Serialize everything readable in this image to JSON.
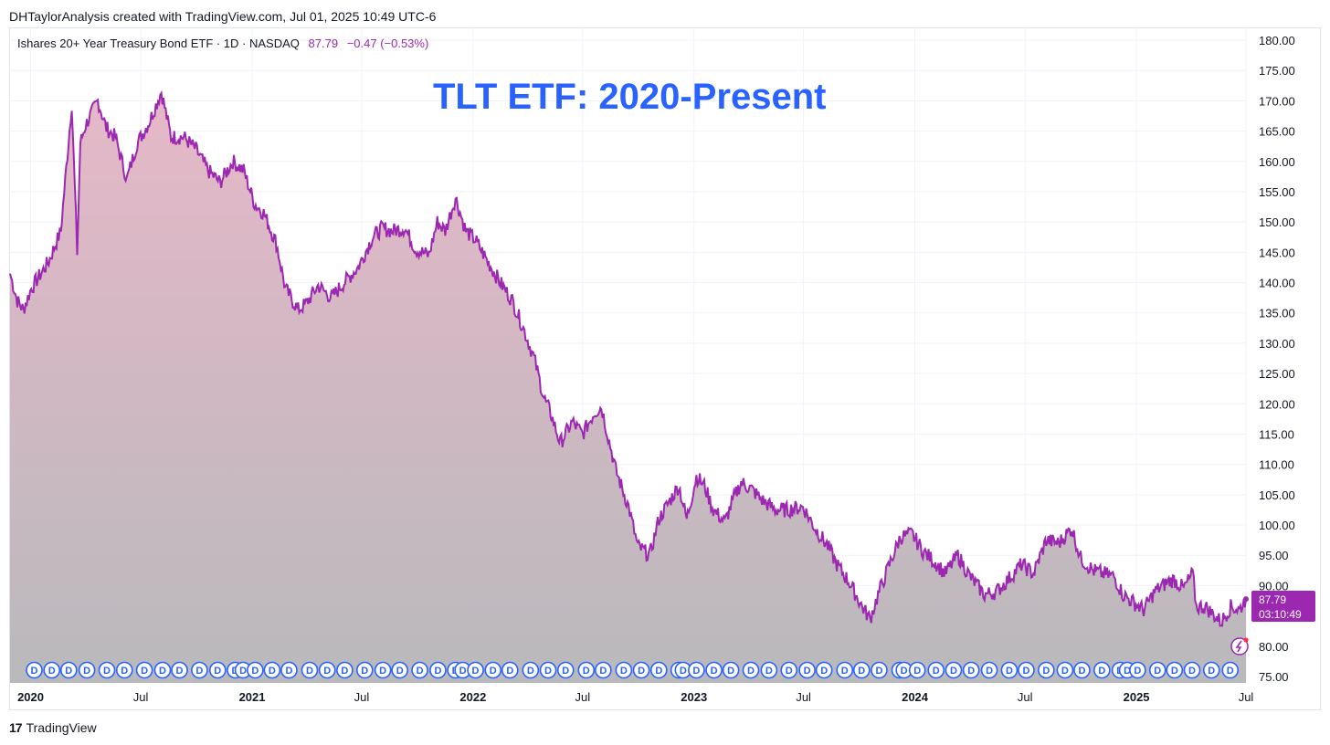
{
  "header": {
    "note": "DHTaylorAnalysis created with TradingView.com, Jul 01, 2025 10:49 UTC-6"
  },
  "symbol": {
    "description": "Ishares 20+ Year Treasury Bond ETF · 1D · NASDAQ",
    "last_price": "87.79",
    "change": "−0.47 (−0.53%)"
  },
  "price_box": {
    "price": "87.79",
    "countdown": "03:10:49"
  },
  "footer": {
    "brand": "TradingView",
    "logo_text": "17"
  },
  "dividend_marker_label": "D",
  "colors": {
    "line": "#9c27b0",
    "fill_top": "#e6b8c8",
    "fill_bottom": "#b9b9bc",
    "title": "#2962ff",
    "grid": "#f0f3fa",
    "badge": "#2962ff"
  },
  "chart_data": {
    "type": "area",
    "title": "TLT ETF: 2020-Present",
    "y_axis_side": "right",
    "ylim": [
      75,
      180
    ],
    "y_ticks": [
      "75.00",
      "80.00",
      "85.00",
      "90.00",
      "95.00",
      "100.00",
      "105.00",
      "110.00",
      "115.00",
      "120.00",
      "125.00",
      "130.00",
      "135.00",
      "140.00",
      "145.00",
      "150.00",
      "155.00",
      "160.00",
      "165.00",
      "170.00",
      "175.00",
      "180.00"
    ],
    "x_range": [
      "2019-11-28",
      "2025-07-01"
    ],
    "x_ticks": [
      {
        "label": "2020",
        "date": "2020-01-01",
        "bold": true
      },
      {
        "label": "Jul",
        "date": "2020-07-01",
        "bold": false
      },
      {
        "label": "2021",
        "date": "2021-01-01",
        "bold": true
      },
      {
        "label": "Jul",
        "date": "2021-07-01",
        "bold": false
      },
      {
        "label": "2022",
        "date": "2022-01-01",
        "bold": true
      },
      {
        "label": "Jul",
        "date": "2022-07-01",
        "bold": false
      },
      {
        "label": "2023",
        "date": "2023-01-01",
        "bold": true
      },
      {
        "label": "Jul",
        "date": "2023-07-01",
        "bold": false
      },
      {
        "label": "2024",
        "date": "2024-01-01",
        "bold": true
      },
      {
        "label": "Jul",
        "date": "2024-07-01",
        "bold": false
      },
      {
        "label": "2025",
        "date": "2025-01-01",
        "bold": true
      },
      {
        "label": "Jul",
        "date": "2025-07-01",
        "bold": false
      }
    ],
    "grid": true,
    "series": [
      {
        "x": [
          "2019-11-28",
          "2019-12-10",
          "2019-12-20",
          "2020-01-02",
          "2020-01-15",
          "2020-01-31",
          "2020-02-20",
          "2020-03-09",
          "2020-03-12",
          "2020-03-18",
          "2020-03-23",
          "2020-04-01",
          "2020-04-21",
          "2020-05-05",
          "2020-05-20",
          "2020-06-08",
          "2020-06-25",
          "2020-07-15",
          "2020-08-04",
          "2020-08-20",
          "2020-09-10",
          "2020-09-30",
          "2020-10-20",
          "2020-11-09",
          "2020-11-30",
          "2020-12-18",
          "2021-01-05",
          "2021-01-20",
          "2021-02-10",
          "2021-02-25",
          "2021-03-18",
          "2021-03-31",
          "2021-04-20",
          "2021-05-12",
          "2021-06-02",
          "2021-06-25",
          "2021-07-19",
          "2021-08-04",
          "2021-08-20",
          "2021-09-10",
          "2021-09-28",
          "2021-10-20",
          "2021-11-03",
          "2021-11-16",
          "2021-12-03",
          "2021-12-20",
          "2022-01-05",
          "2022-01-25",
          "2022-02-15",
          "2022-03-07",
          "2022-03-25",
          "2022-04-12",
          "2022-04-28",
          "2022-05-09",
          "2022-05-25",
          "2022-06-14",
          "2022-07-01",
          "2022-07-20",
          "2022-08-01",
          "2022-08-25",
          "2022-09-15",
          "2022-09-30",
          "2022-10-20",
          "2022-11-04",
          "2022-11-22",
          "2022-12-07",
          "2022-12-20",
          "2023-01-05",
          "2023-01-18",
          "2023-02-02",
          "2023-02-21",
          "2023-03-08",
          "2023-03-20",
          "2023-04-05",
          "2023-04-25",
          "2023-05-15",
          "2023-06-05",
          "2023-06-30",
          "2023-07-20",
          "2023-08-10",
          "2023-08-25",
          "2023-09-15",
          "2023-10-06",
          "2023-10-19",
          "2023-11-03",
          "2023-11-20",
          "2023-12-08",
          "2023-12-27",
          "2024-01-16",
          "2024-02-02",
          "2024-02-20",
          "2024-03-12",
          "2024-04-01",
          "2024-04-25",
          "2024-05-15",
          "2024-06-03",
          "2024-06-25",
          "2024-07-15",
          "2024-08-05",
          "2024-08-26",
          "2024-09-16",
          "2024-10-01",
          "2024-10-21",
          "2024-11-06",
          "2024-11-25",
          "2024-12-10",
          "2025-01-13",
          "2025-01-31",
          "2025-02-20",
          "2025-03-04",
          "2025-03-20",
          "2025-04-04",
          "2025-04-10",
          "2025-04-25",
          "2025-05-21",
          "2025-06-06",
          "2025-06-20",
          "2025-07-01"
        ],
        "values": [
          141.5,
          137.0,
          135.5,
          139.0,
          141.0,
          143.5,
          148.5,
          169.5,
          161.0,
          145.0,
          163.0,
          166.0,
          170.0,
          165.5,
          164.0,
          157.0,
          163.0,
          166.5,
          171.5,
          164.0,
          164.0,
          162.0,
          158.5,
          156.5,
          160.0,
          158.5,
          153.0,
          151.5,
          146.5,
          139.0,
          135.5,
          136.5,
          139.5,
          137.5,
          140.0,
          142.5,
          147.5,
          149.0,
          148.5,
          149.0,
          145.5,
          144.5,
          150.0,
          148.5,
          154.0,
          148.5,
          147.0,
          143.5,
          140.0,
          137.0,
          132.5,
          127.5,
          121.0,
          118.5,
          113.5,
          117.0,
          115.0,
          118.5,
          119.5,
          109.0,
          103.0,
          96.5,
          95.0,
          101.0,
          104.0,
          106.5,
          101.0,
          108.0,
          106.5,
          102.5,
          100.5,
          104.5,
          107.0,
          106.0,
          104.0,
          102.5,
          102.5,
          103.0,
          99.5,
          96.5,
          93.5,
          90.5,
          86.5,
          84.5,
          89.0,
          93.5,
          98.0,
          98.5,
          95.5,
          94.0,
          92.0,
          95.0,
          91.5,
          88.5,
          89.0,
          91.0,
          93.5,
          92.0,
          97.5,
          97.0,
          99.5,
          94.5,
          92.5,
          92.0,
          91.5,
          88.5,
          86.0,
          89.0,
          90.5,
          91.0,
          89.5,
          92.0,
          86.5,
          86.5,
          84.0,
          86.5,
          86.0,
          87.79
        ]
      }
    ],
    "last_value": 87.79,
    "dividend_markers": {
      "label": "D",
      "dates": [
        "2020-01-07",
        "2020-02-05",
        "2020-03-04",
        "2020-04-03",
        "2020-05-06",
        "2020-06-04",
        "2020-07-07",
        "2020-08-06",
        "2020-09-03",
        "2020-10-06",
        "2020-11-05",
        "2020-12-04",
        "2020-12-17",
        "2021-01-06",
        "2021-02-03",
        "2021-03-03",
        "2021-04-06",
        "2021-05-05",
        "2021-06-03",
        "2021-07-06",
        "2021-08-05",
        "2021-09-02",
        "2021-10-05",
        "2021-11-04",
        "2021-12-03",
        "2021-12-15",
        "2022-01-05",
        "2022-02-03",
        "2022-03-03",
        "2022-04-06",
        "2022-05-05",
        "2022-06-03",
        "2022-07-07",
        "2022-08-04",
        "2022-09-07",
        "2022-10-06",
        "2022-11-04",
        "2022-12-07",
        "2022-12-14",
        "2023-01-05",
        "2023-02-03",
        "2023-03-03",
        "2023-04-05",
        "2023-05-05",
        "2023-06-07",
        "2023-07-07",
        "2023-08-04",
        "2023-09-07",
        "2023-10-05",
        "2023-11-03",
        "2023-12-07",
        "2023-12-14",
        "2024-01-05",
        "2024-02-05",
        "2024-03-05",
        "2024-04-03",
        "2024-05-03",
        "2024-06-05",
        "2024-07-03",
        "2024-08-05",
        "2024-09-05",
        "2024-10-03",
        "2024-11-05",
        "2024-12-05",
        "2024-12-17",
        "2025-01-03",
        "2025-02-05",
        "2025-03-05",
        "2025-04-03",
        "2025-05-05",
        "2025-06-05"
      ]
    }
  }
}
